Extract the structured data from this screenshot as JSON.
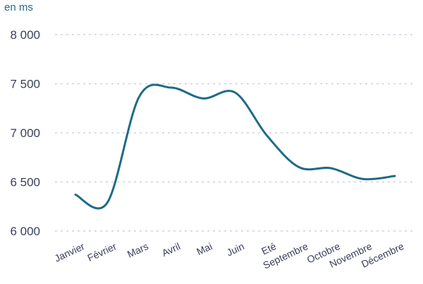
{
  "chart_data": {
    "type": "line",
    "title": "",
    "unit_label": "en ms",
    "xlabel": "",
    "ylabel": "",
    "categories": [
      "Janvier",
      "Février",
      "Mars",
      "Avril",
      "Mai",
      "Juin",
      "Eté",
      "Septembre",
      "Octobre",
      "Novembre",
      "Décembre"
    ],
    "series": [
      {
        "name": "",
        "color": "#1f6b87",
        "values": [
          6370,
          6290,
          7370,
          7460,
          7350,
          7410,
          6970,
          6650,
          6640,
          6530,
          6560
        ]
      }
    ],
    "ylim": [
      6000,
      8000
    ],
    "yticks": [
      6000,
      6500,
      7000,
      7500,
      8000
    ],
    "ytick_labels": [
      "6 000",
      "6 500",
      "7 000",
      "7 500",
      "8 000"
    ],
    "grid": true,
    "grid_style": "dotted",
    "legend": "none"
  }
}
